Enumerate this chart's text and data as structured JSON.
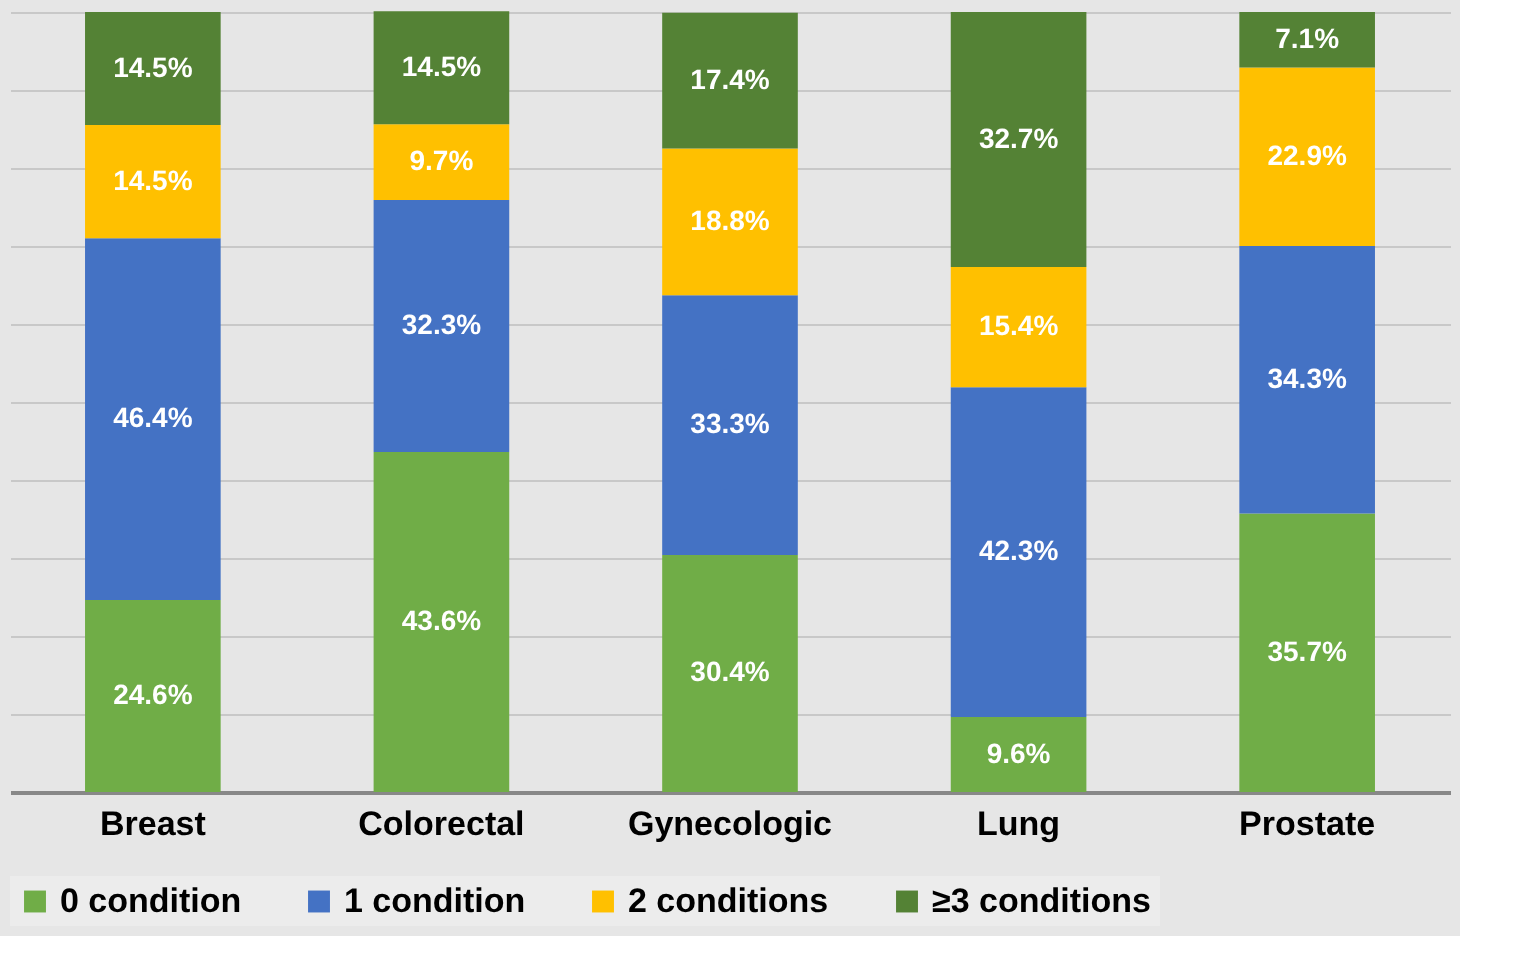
{
  "chart_data": {
    "type": "bar",
    "stacked": true,
    "categories": [
      "Breast",
      "Colorectal",
      "Gynecologic",
      "Lung",
      "Prostate"
    ],
    "series": [
      {
        "name": "0 condition",
        "color": "#70ad47",
        "values": [
          24.6,
          43.6,
          30.4,
          9.6,
          35.7
        ],
        "value_labels": [
          "24.6%",
          "43.6%",
          "30.4%",
          "9.6%",
          "35.7%"
        ]
      },
      {
        "name": "1 condition",
        "color": "#4472c4",
        "values": [
          46.4,
          32.3,
          33.3,
          42.3,
          34.3
        ],
        "value_labels": [
          "46.4%",
          "32.3%",
          "33.3%",
          "42.3%",
          "34.3%"
        ]
      },
      {
        "name": "2 conditions",
        "color": "#ffc000",
        "values": [
          14.5,
          9.7,
          18.8,
          15.4,
          22.9
        ],
        "value_labels": [
          "14.5%",
          "9.7%",
          "18.8%",
          "15.4%",
          "22.9%"
        ]
      },
      {
        "name": "≥3 conditions",
        "color": "#548235",
        "values": [
          14.5,
          14.5,
          17.4,
          32.7,
          7.1
        ],
        "value_labels": [
          "14.5%",
          "14.5%",
          "17.4%",
          "32.7%",
          "7.1%"
        ]
      }
    ],
    "ylim": [
      0,
      100
    ],
    "yticks": [
      {
        "value": 0,
        "label": null
      },
      {
        "value": 10,
        "label": null
      },
      {
        "value": 20,
        "label": null
      },
      {
        "value": 30,
        "label": null
      },
      {
        "value": 40,
        "label": null
      },
      {
        "value": 50,
        "label": null
      },
      {
        "value": 60,
        "label": null
      },
      {
        "value": 70,
        "label": null
      },
      {
        "value": 80,
        "label": null
      },
      {
        "value": 90,
        "label": null
      },
      {
        "value": 100,
        "label": null
      }
    ],
    "tick_labels": "x",
    "grid": "y",
    "legend": "bottom"
  }
}
